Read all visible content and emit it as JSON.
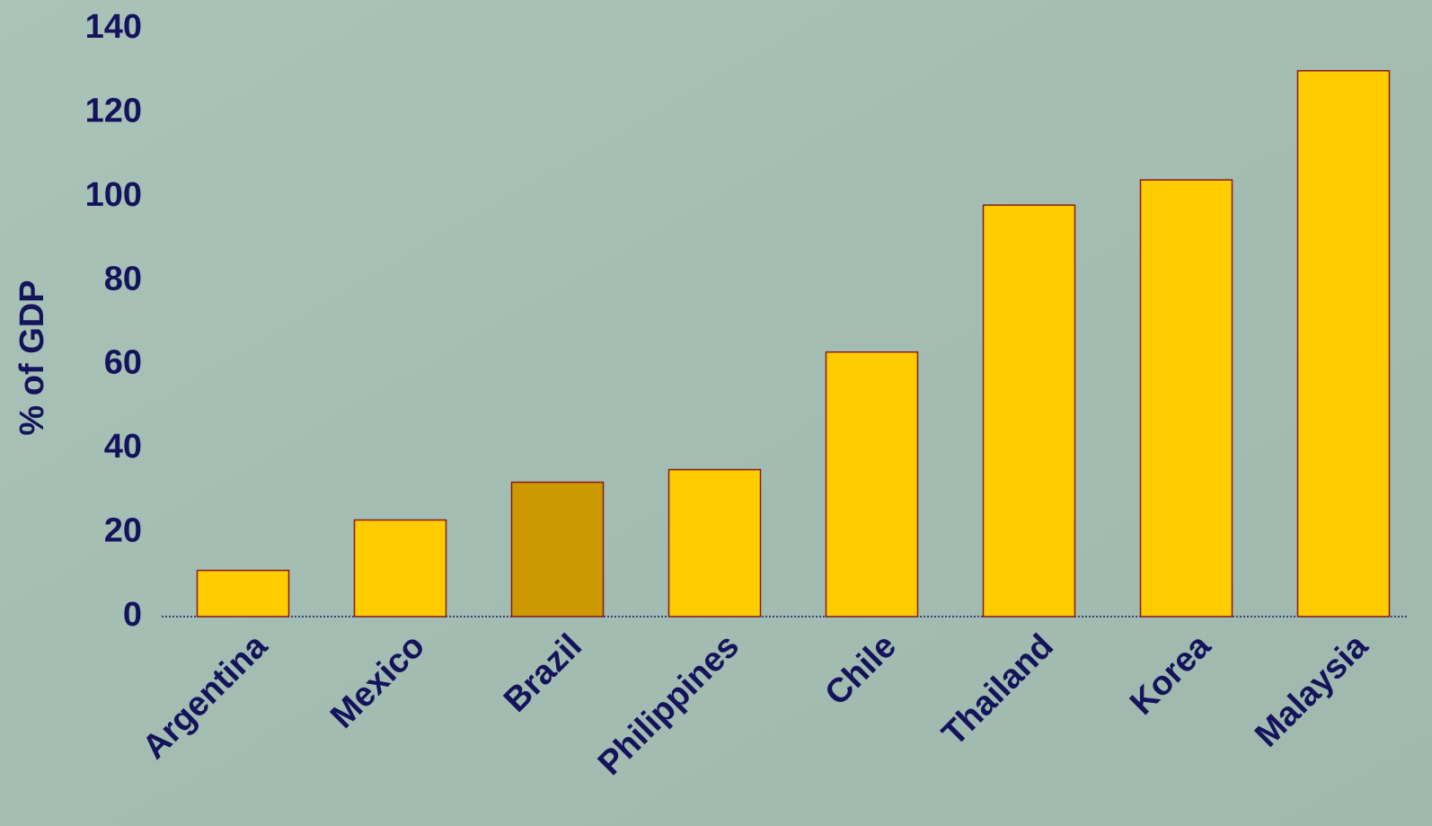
{
  "chart_data": {
    "type": "bar",
    "y_label": "% of GDP",
    "categories": [
      "Argentina",
      "Mexico",
      "Brazil",
      "Philippines",
      "Chile",
      "Thailand",
      "Korea",
      "Malaysia"
    ],
    "values": [
      11,
      23,
      32,
      35,
      63,
      98,
      104,
      130
    ],
    "colors": [
      "#ffcc00",
      "#ffcc00",
      "#cc9900",
      "#ffcc00",
      "#ffcc00",
      "#ffcc00",
      "#ffcc00",
      "#ffcc00"
    ],
    "ylim": [
      0,
      140
    ],
    "yticks": [
      0,
      20,
      40,
      60,
      80,
      100,
      120,
      140
    ],
    "grid": false
  }
}
